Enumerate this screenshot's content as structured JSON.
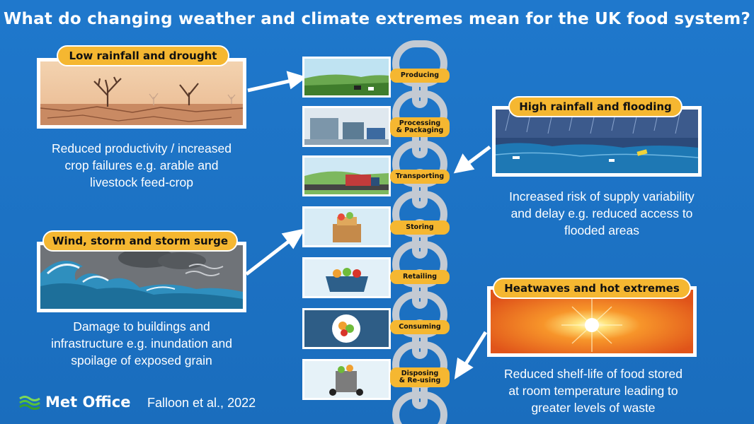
{
  "title": "What do changing weather and climate extremes mean for the UK food system?",
  "hazards": {
    "drought": {
      "label": "Low rainfall and drought",
      "impact_lines": [
        "Reduced productivity / increased",
        "crop failures e.g. arable and",
        "livestock feed-crop"
      ]
    },
    "storm": {
      "label": "Wind, storm and storm surge",
      "impact_lines": [
        "Damage to buildings and",
        "infrastructure e.g. inundation and",
        "spoilage of exposed grain"
      ]
    },
    "flooding": {
      "label": "High rainfall and flooding",
      "impact_lines": [
        "Increased risk of supply variability",
        "and delay e.g. reduced access to",
        "flooded areas"
      ]
    },
    "heat": {
      "label": "Heatwaves and hot extremes",
      "impact_lines": [
        "Reduced shelf-life of food stored",
        "at room temperature leading to",
        "greater levels of waste"
      ]
    }
  },
  "stages": [
    {
      "label_lines": [
        "Producing"
      ]
    },
    {
      "label_lines": [
        "Processing",
        "& Packaging"
      ]
    },
    {
      "label_lines": [
        "Transporting"
      ]
    },
    {
      "label_lines": [
        "Storing"
      ]
    },
    {
      "label_lines": [
        "Retailing"
      ]
    },
    {
      "label_lines": [
        "Consuming"
      ]
    },
    {
      "label_lines": [
        "Disposing",
        "& Re-using"
      ]
    }
  ],
  "footer": {
    "logo_text": "Met Office",
    "citation": "Falloon et al., 2022"
  },
  "colors": {
    "background": "#1f78cc",
    "pill": "#f5b731",
    "chain": "#c4cbd3"
  }
}
